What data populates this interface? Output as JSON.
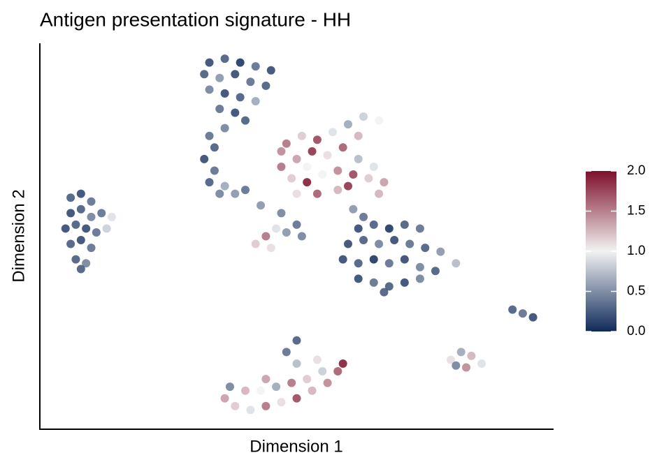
{
  "chart_data": {
    "type": "scatter",
    "title": "Antigen presentation signature - HH",
    "x_label": "Dimension 1",
    "y_label": "Dimension 2",
    "xlim": [
      0,
      100
    ],
    "ylim": [
      0,
      100
    ],
    "x": [
      6,
      8,
      10,
      6,
      8,
      10,
      12,
      5,
      7,
      9,
      11,
      13,
      6,
      8,
      10,
      7,
      9,
      14,
      8,
      33,
      36,
      39,
      42,
      45,
      32,
      35,
      38,
      41,
      44,
      33,
      36,
      39,
      42,
      35,
      38,
      40,
      36,
      33,
      34,
      32,
      34,
      33,
      35,
      36,
      38,
      40,
      43,
      47,
      48,
      51,
      54,
      57,
      60,
      63,
      66,
      62,
      59,
      56,
      53,
      50,
      47,
      49,
      52,
      55,
      58,
      61,
      64,
      67,
      65,
      62,
      58,
      54,
      50,
      47,
      52,
      60,
      66,
      42,
      44,
      46,
      48,
      50,
      51,
      45,
      61,
      63,
      62,
      65,
      68,
      71,
      74,
      60,
      63,
      66,
      69,
      72,
      75,
      78,
      81,
      59,
      62,
      65,
      68,
      71,
      74,
      77,
      62,
      65,
      68,
      71,
      74,
      67,
      36,
      38,
      41,
      44,
      47,
      50,
      53,
      56,
      58,
      59,
      55,
      52,
      49,
      46,
      43,
      40,
      37,
      50,
      48,
      50,
      54,
      44,
      80,
      82,
      84,
      86,
      83,
      81,
      92,
      94,
      96
    ],
    "y": [
      60,
      61,
      59,
      56,
      57,
      55,
      56,
      52,
      53,
      52,
      51,
      52,
      48,
      49,
      47,
      44,
      43,
      55,
      41.5,
      95,
      96,
      95,
      94,
      93,
      92,
      91,
      92,
      90,
      89,
      88,
      87,
      86,
      85,
      83,
      82,
      80,
      78,
      76,
      73,
      70,
      67,
      64,
      61,
      63,
      61,
      62,
      58,
      56,
      74,
      76,
      75,
      77,
      79,
      81,
      80,
      76,
      73,
      71,
      72,
      70,
      68,
      65,
      64,
      66,
      67,
      66,
      65,
      64,
      68,
      70,
      62,
      61,
      61,
      72,
      68,
      63,
      61,
      48,
      50,
      52,
      51,
      53,
      50,
      47,
      57,
      55,
      52,
      53,
      52,
      53,
      52,
      48,
      49,
      48,
      49,
      48,
      47,
      46,
      43,
      44,
      43,
      44,
      43,
      44,
      42,
      41,
      39,
      38,
      37,
      38,
      39,
      35.5,
      8,
      6,
      5,
      6,
      7,
      8,
      10,
      12,
      15,
      17,
      15,
      13,
      12,
      11,
      10,
      10,
      11,
      17,
      20,
      23,
      18,
      13,
      18,
      20,
      19,
      17,
      16,
      16.5,
      31,
      30,
      29
    ],
    "values": [
      0.2,
      0.1,
      0.3,
      0.1,
      0.2,
      0.4,
      0.3,
      0.1,
      0.2,
      0.1,
      0.3,
      0.8,
      0.2,
      0.1,
      0.3,
      0.2,
      0.4,
      0.9,
      0.2,
      0.1,
      0.2,
      0.0,
      0.3,
      0.1,
      0.2,
      0.5,
      0.1,
      0.3,
      0.2,
      0.4,
      0.1,
      0.2,
      0.6,
      0.3,
      0.1,
      0.2,
      0.4,
      0.3,
      0.2,
      0.1,
      0.3,
      0.2,
      0.4,
      0.6,
      0.5,
      0.3,
      0.5,
      0.4,
      1.6,
      1.2,
      1.8,
      0.9,
      0.6,
      0.8,
      1.0,
      1.3,
      1.7,
      1.1,
      1.9,
      1.4,
      1.6,
      1.2,
      2.0,
      1.0,
      1.5,
      1.8,
      1.2,
      1.4,
      0.9,
      0.7,
      1.3,
      1.7,
      1.1,
      1.5,
      1.0,
      1.9,
      1.3,
      1.2,
      1.6,
      0.9,
      0.5,
      0.3,
      0.4,
      1.1,
      0.5,
      0.3,
      0.1,
      0.2,
      0.0,
      0.2,
      0.3,
      0.1,
      0.2,
      0.4,
      0.1,
      0.3,
      0.2,
      0.5,
      0.7,
      0.1,
      0.2,
      0.0,
      0.3,
      0.1,
      0.4,
      0.2,
      0.1,
      0.3,
      0.2,
      0.1,
      0.4,
      0.2,
      1.4,
      1.2,
      0.9,
      1.6,
      1.1,
      1.8,
      1.3,
      1.5,
      1.7,
      2.0,
      0.8,
      1.2,
      1.6,
      0.6,
      1.0,
      1.3,
      0.4,
      0.7,
      0.3,
      0.2,
      1.1,
      1.4,
      1.1,
      0.6,
      1.3,
      0.9,
      1.5,
      0.4,
      0.2,
      0.3,
      0.1
    ],
    "colorbar": {
      "lim": [
        0,
        2
      ],
      "ticks": [
        {
          "value": 0,
          "label": "0.0"
        },
        {
          "value": 0.5,
          "label": "0.5"
        },
        {
          "value": 1,
          "label": "1.0"
        },
        {
          "value": 1.5,
          "label": "1.5"
        },
        {
          "value": 2,
          "label": "2.0"
        }
      ],
      "colors": [
        "#0f2a5a",
        "#f2f2f2",
        "#7d0f2a"
      ]
    }
  }
}
